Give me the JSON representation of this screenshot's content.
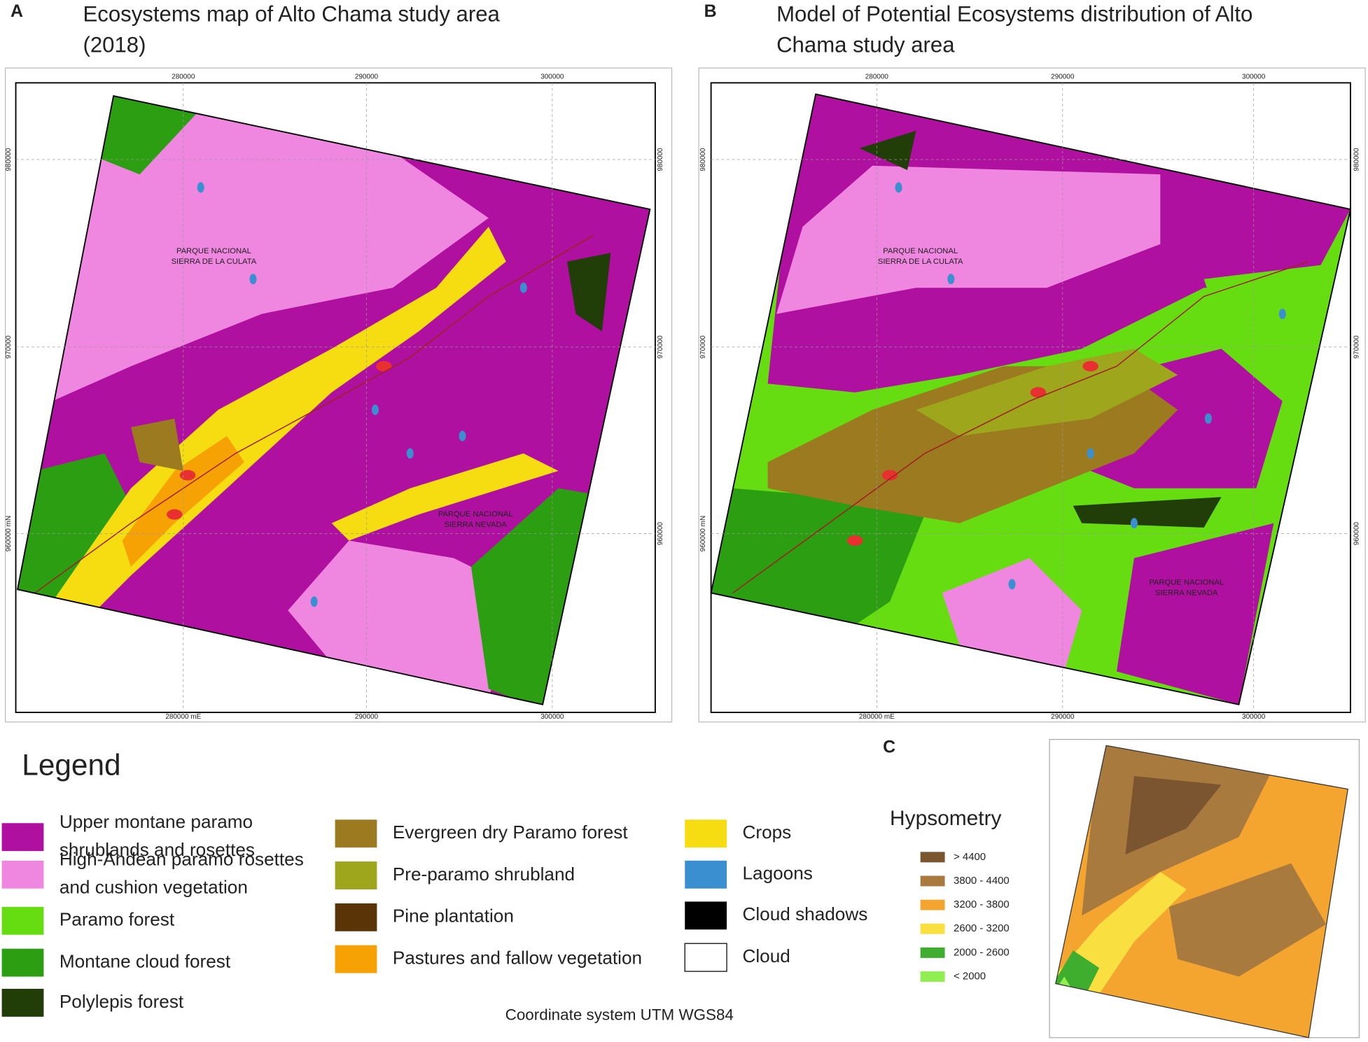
{
  "panels": [
    {
      "letter": "A",
      "title": [
        "Ecosystems map of Alto Chama study area",
        "(2018)"
      ],
      "top_ticks": [
        "280000",
        "290000",
        "300000"
      ],
      "bottom_ticks": [
        "280000 mE",
        "290000",
        "300000"
      ],
      "left_ticks": [
        "980000",
        "970000",
        "960000 mN"
      ],
      "right_ticks": [
        "980000",
        "970000",
        "960000"
      ],
      "places": [
        [
          "PARQUE NACIONAL",
          "SIERRA DE LA CULATA"
        ],
        [
          "PARQUE NACIONAL",
          "SIERRA NEVADA"
        ]
      ]
    },
    {
      "letter": "B",
      "title": [
        "Model of Potential Ecosystems distribution of Alto",
        "Chama study area"
      ],
      "top_ticks": [
        "280000",
        "290000",
        "300000"
      ],
      "bottom_ticks": [
        "280000 mE",
        "290000",
        "300000"
      ],
      "left_ticks": [
        "980000",
        "970000",
        "960000 mN"
      ],
      "right_ticks": [
        "980000",
        "970000",
        "960000"
      ],
      "places": [
        [
          "PARQUE NACIONAL",
          "SIERRA DE LA CULATA"
        ],
        [
          "PARQUE NACIONAL",
          "SIERRA NEVADA"
        ]
      ]
    },
    {
      "letter": "C"
    }
  ],
  "legend": {
    "title": "Legend",
    "items": [
      {
        "label": [
          "Upper montane paramo",
          "shrublands and rosettes"
        ],
        "color": "#b0109f"
      },
      {
        "label": [
          "High-Andean paramo rosettes",
          "and cushion vegetation"
        ],
        "color": "#ef86e0"
      },
      {
        "label": [
          "Paramo forest"
        ],
        "color": "#66dd11"
      },
      {
        "label": [
          "Montane cloud forest"
        ],
        "color": "#2b9e12"
      },
      {
        "label": [
          "Polylepis forest"
        ],
        "color": "#213d08"
      },
      {
        "label": [
          "Evergreen dry Paramo forest"
        ],
        "color": "#9c7a1f"
      },
      {
        "label": [
          "Pre-paramo shrubland"
        ],
        "color": "#9ea61b"
      },
      {
        "label": [
          "Pine plantation"
        ],
        "color": "#5a3306"
      },
      {
        "label": [
          "Pastures and fallow vegetation"
        ],
        "color": "#f7a204"
      },
      {
        "label": [
          "Crops"
        ],
        "color": "#f5dd12"
      },
      {
        "label": [
          "Lagoons"
        ],
        "color": "#3a8fd0"
      },
      {
        "label": [
          "Cloud shadows"
        ],
        "color": "#000000"
      },
      {
        "label": [
          "Cloud"
        ],
        "color": "#ffffff"
      }
    ]
  },
  "hypsometry": {
    "title": "Hypsometry",
    "items": [
      {
        "label": "> 4400",
        "color": "#7a5530"
      },
      {
        "label": "3800 - 4400",
        "color": "#a87a3e"
      },
      {
        "label": "3200 - 3800",
        "color": "#f4a530"
      },
      {
        "label": "2600 - 3200",
        "color": "#f9e040"
      },
      {
        "label": "2000 - 2600",
        "color": "#3fae2f"
      },
      {
        "label": "< 2000",
        "color": "#90ee50"
      }
    ]
  },
  "footer": "Coordinate system UTM WGS84"
}
